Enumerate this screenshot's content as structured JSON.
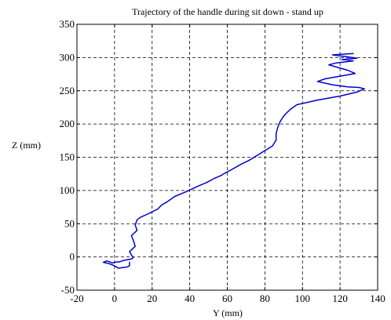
{
  "chart_data": {
    "type": "line",
    "title": "Trajectory of the handle during sit down - stand up",
    "xlabel": "Y (mm)",
    "ylabel": "Z (mm)",
    "xlim": [
      -20,
      140
    ],
    "ylim": [
      -50,
      350
    ],
    "xticks": [
      -20,
      0,
      20,
      40,
      60,
      80,
      100,
      120,
      140
    ],
    "yticks": [
      -50,
      0,
      50,
      100,
      150,
      200,
      250,
      300,
      350
    ],
    "grid": true,
    "series": [
      {
        "color": "#0000cc",
        "x": [
          127,
          116,
          124,
          129,
          121,
          127,
          118,
          114,
          119,
          124,
          128,
          120,
          112,
          108,
          116,
          124,
          130,
          133,
          129,
          120,
          108,
          97,
          94,
          92,
          90,
          88,
          87,
          86,
          86,
          84,
          80,
          76,
          72,
          67,
          62,
          58,
          57,
          53,
          49,
          44,
          38,
          32,
          28,
          25,
          23,
          20,
          18,
          14,
          12,
          11,
          12,
          9,
          10,
          11,
          8,
          9,
          10,
          9,
          5,
          3,
          0,
          -1,
          -4,
          -6,
          -3,
          -1,
          1,
          2,
          4,
          7,
          8,
          8
        ],
        "y": [
          306,
          304,
          301,
          299,
          297,
          295,
          292,
          289,
          285,
          281,
          276,
          272,
          268,
          264,
          259,
          256,
          255,
          253,
          248,
          242,
          236,
          229,
          223,
          218,
          212,
          203,
          196,
          186,
          176,
          167,
          160,
          153,
          146,
          139,
          131,
          125,
          123,
          118,
          112,
          106,
          98,
          91,
          83,
          78,
          72,
          68,
          65,
          60,
          56,
          48,
          40,
          32,
          25,
          16,
          8,
          3,
          -1,
          -3,
          -5,
          -7,
          -8,
          -9,
          -6,
          -8,
          -10,
          -12,
          -15,
          -17,
          -16,
          -15,
          -13,
          -8
        ]
      }
    ]
  }
}
